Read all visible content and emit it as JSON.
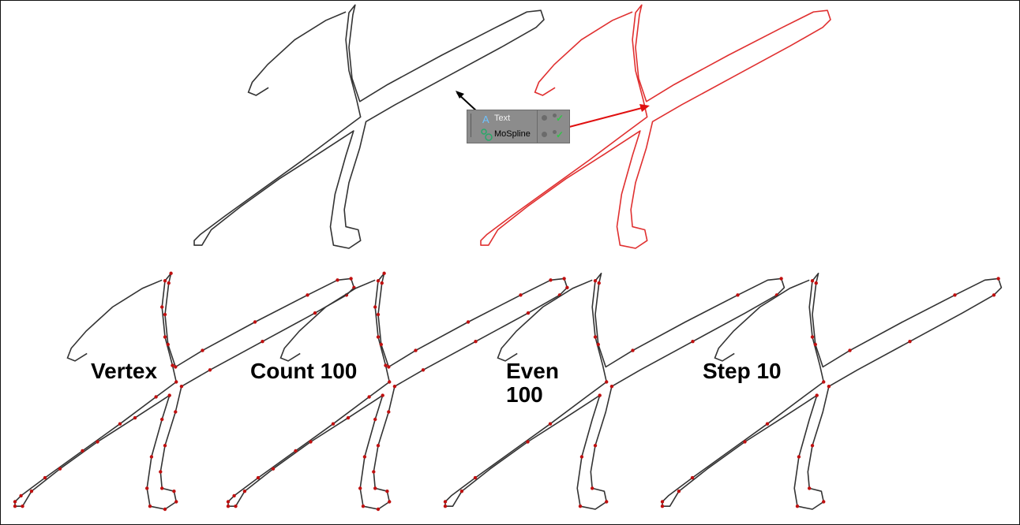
{
  "object_manager": {
    "rows": [
      {
        "label": "Text",
        "icon": "text-object-icon",
        "color": "#e8f0ff"
      },
      {
        "label": "MoSpline",
        "icon": "mospline-object-icon",
        "color": "#000000"
      }
    ]
  },
  "captions": {
    "vertex": "Vertex",
    "count": "Count 100",
    "even_line1": "Even",
    "even_line2": "100",
    "step": "Step 10"
  },
  "colors": {
    "outline": "#333333",
    "mospline": "#e03030",
    "point": "#c01010"
  }
}
